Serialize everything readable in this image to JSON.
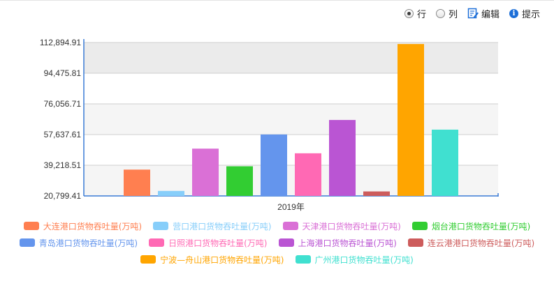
{
  "toolbar": {
    "row_label": "行",
    "col_label": "列",
    "edit_label": "编辑",
    "hint_label": "提示",
    "edit_icon_color": "#1d6fd8",
    "info_icon_color": "#1d6fd8"
  },
  "chart_data": {
    "type": "bar",
    "categories": [
      "2019年"
    ],
    "xlabel": "",
    "ylabel": "",
    "ylim": [
      20799.41,
      112894.91
    ],
    "yticks": [
      "20,799.41",
      "39,218.51",
      "57,637.61",
      "76,056.71",
      "94,475.81",
      "112,894.91"
    ],
    "grid": true,
    "legend_position": "bottom",
    "series": [
      {
        "name": "大连港口货物吞吐量(万吨)",
        "color": "#ff7f50",
        "values": [
          36600
        ]
      },
      {
        "name": "营口港口货物吞吐量(万吨)",
        "color": "#87cefa",
        "values": [
          23800
        ]
      },
      {
        "name": "天津港口货物吞吐量(万吨)",
        "color": "#da70d6",
        "values": [
          49200
        ]
      },
      {
        "name": "烟台港口货物吞吐量(万吨)",
        "color": "#32cd32",
        "values": [
          38600
        ]
      },
      {
        "name": "青岛港口货物吞吐量(万吨)",
        "color": "#6495ed",
        "values": [
          57700
        ]
      },
      {
        "name": "日照港口货物吞吐量(万吨)",
        "color": "#ff69b4",
        "values": [
          46400
        ]
      },
      {
        "name": "上海港口货物吞吐量(万吨)",
        "color": "#ba55d3",
        "values": [
          66400
        ]
      },
      {
        "name": "连云港港口货物吞吐量(万吨)",
        "color": "#cd5c5c",
        "values": [
          23500
        ]
      },
      {
        "name": "宁波—舟山港口货物吞吐量(万吨)",
        "color": "#ffa500",
        "values": [
          112000
        ]
      },
      {
        "name": "广州港口货物吞吐量(万吨)",
        "color": "#40e0d0",
        "values": [
          60600
        ]
      }
    ]
  }
}
